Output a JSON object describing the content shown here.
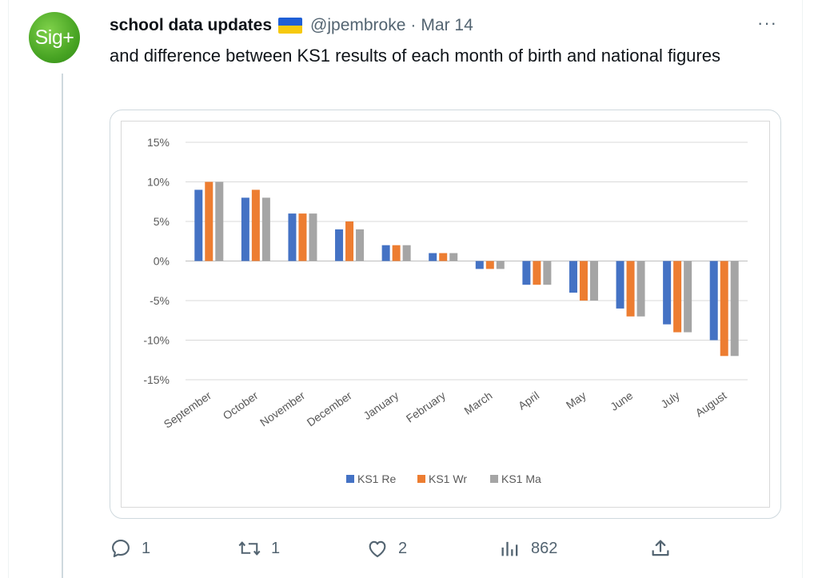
{
  "tweet": {
    "avatar_text": "Sig+",
    "name": "school data updates",
    "flag_icon": "ukraine-flag-icon",
    "handle": "@jpembroke",
    "separator": "·",
    "date": "Mar 14",
    "more_label": "···",
    "text": "and difference between KS1 results of each month of birth and national figures"
  },
  "actions": {
    "replies": "1",
    "retweets": "1",
    "likes": "2",
    "views": "862"
  },
  "colors": {
    "re": "#4472c4",
    "wr": "#ed7d31",
    "ma": "#a5a5a5",
    "grid": "#d9d9d9",
    "icon": "#536471"
  },
  "chart_data": {
    "type": "bar",
    "categories": [
      "September",
      "October",
      "November",
      "December",
      "January",
      "February",
      "March",
      "April",
      "May",
      "June",
      "July",
      "August"
    ],
    "series": [
      {
        "name": "KS1 Re",
        "values": [
          9,
          8,
          6,
          4,
          2,
          1,
          -1,
          -3,
          -4,
          -6,
          -8,
          -10
        ]
      },
      {
        "name": "KS1 Wr",
        "values": [
          10,
          9,
          6,
          5,
          2,
          1,
          -1,
          -3,
          -5,
          -7,
          -9,
          -12
        ]
      },
      {
        "name": "KS1 Ma",
        "values": [
          10,
          8,
          6,
          4,
          2,
          1,
          -1,
          -3,
          -5,
          -7,
          -9,
          -12
        ]
      }
    ],
    "yticks": [
      "15%",
      "10%",
      "5%",
      "0%",
      "-5%",
      "-10%",
      "-15%"
    ],
    "ylim": [
      -15,
      15
    ],
    "unit": "%",
    "grid": true,
    "legend_position": "bottom"
  }
}
